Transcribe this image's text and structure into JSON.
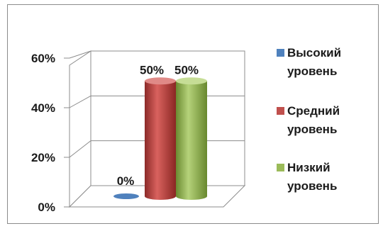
{
  "chart_data": {
    "type": "bar",
    "style": "3d-cylinder",
    "categories": [
      "Высокий уровень",
      "Средний уровень",
      "Низкий уровень"
    ],
    "values": [
      0,
      50,
      50
    ],
    "data_labels": [
      "0%",
      "50%",
      "50%"
    ],
    "y_ticks": [
      "0%",
      "20%",
      "40%",
      "60%"
    ],
    "ylim": [
      0,
      60
    ],
    "grid": true,
    "legend_placement": "right",
    "legend": [
      {
        "line1": "Высокий",
        "line2": "уровень",
        "color": "#4f81bd"
      },
      {
        "line1": "Средний",
        "line2": "уровень",
        "color": "#c0504d"
      },
      {
        "line1": "Низкий",
        "line2": "уровень",
        "color": "#9bbb59"
      }
    ],
    "colors": [
      "#4f81bd",
      "#c0504d",
      "#9bbb59"
    ]
  }
}
